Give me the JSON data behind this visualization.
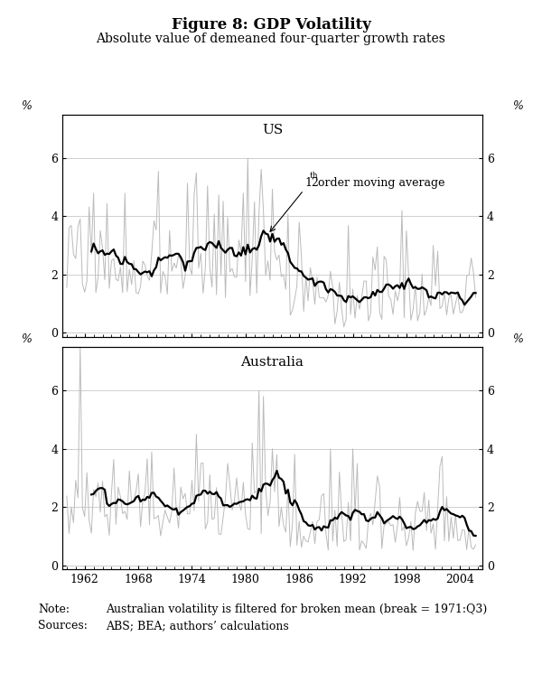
{
  "title": "Figure 8: GDP Volatility",
  "subtitle": "Absolute value of demeaned four-quarter growth rates",
  "us_label": "US",
  "aus_label": "Australia",
  "yticks": [
    0,
    2,
    4,
    6
  ],
  "xticks": [
    1962,
    1968,
    1974,
    1980,
    1986,
    1992,
    1998,
    2004
  ],
  "ylim_us": [
    -0.15,
    7.5
  ],
  "ylim_aus": [
    -0.15,
    7.5
  ],
  "xlim": [
    1959.5,
    2006.5
  ],
  "raw_color": "#bbbbbb",
  "ma_color": "#000000",
  "bg_color": "#ffffff",
  "grid_color": "#c8c8c8",
  "ma_linewidth": 1.6,
  "raw_linewidth": 0.7,
  "note_text": "Australian volatility is filtered for broken mean (break = 1971:Q3)",
  "sources_text": "ABS; BEA; authors’ calculations"
}
